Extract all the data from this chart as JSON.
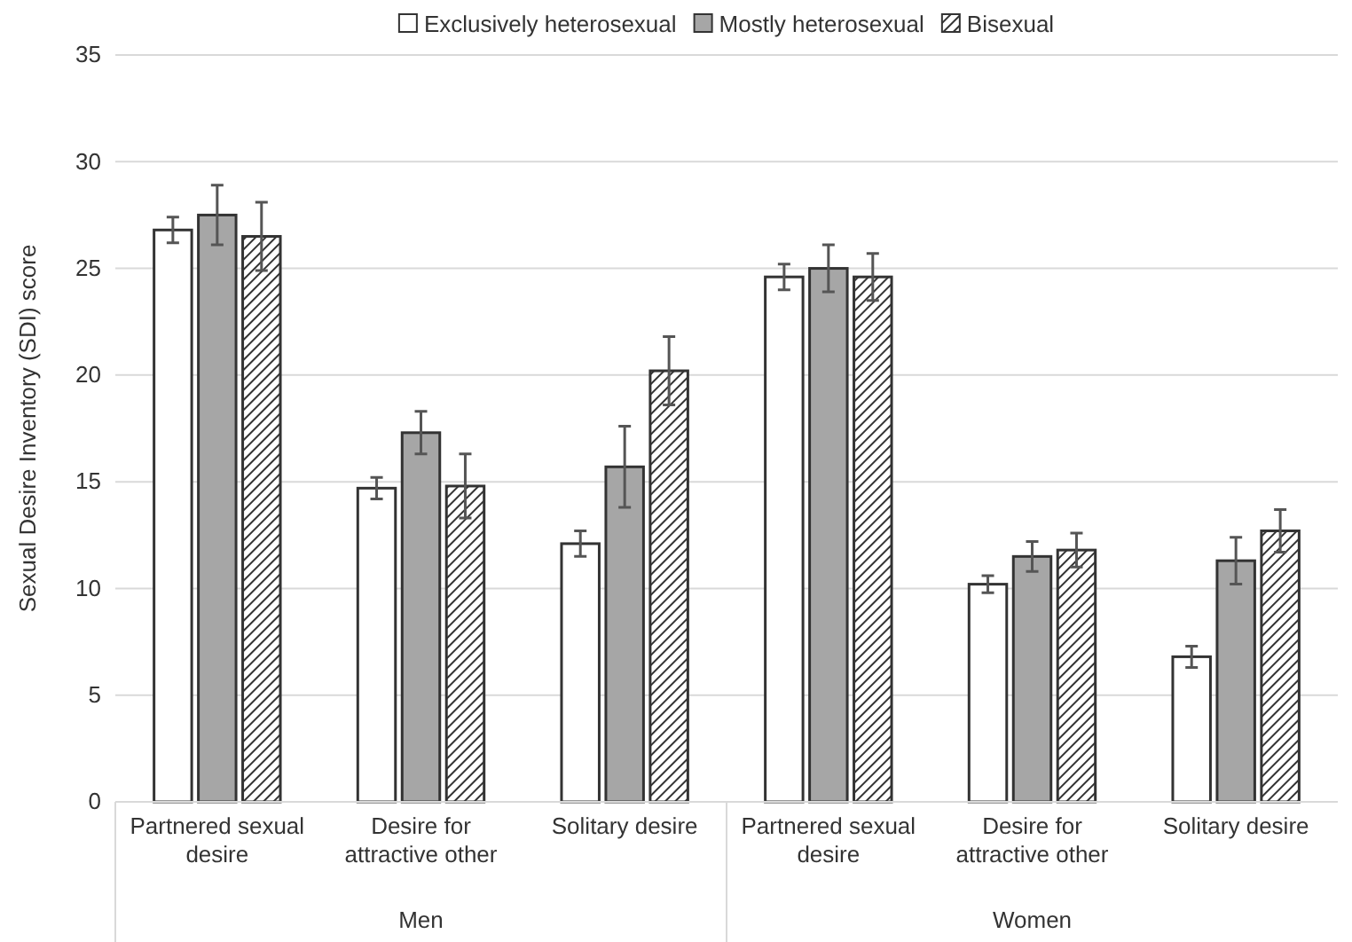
{
  "chart_data": {
    "type": "bar",
    "ylabel": "Sexual Desire Inventory (SDI) score",
    "categories": [
      "Partnered sexual desire",
      "Desire for attractive other",
      "Solitary desire",
      "Partnered sexual desire",
      "Desire for attractive other",
      "Solitary desire"
    ],
    "series": [
      {
        "name": "Exclusively heterosexual",
        "color": "#ffffff",
        "values": [
          26.8,
          14.7,
          12.1,
          24.6,
          10.2,
          6.8
        ],
        "errors": [
          0.6,
          0.5,
          0.6,
          0.6,
          0.4,
          0.5
        ]
      },
      {
        "name": "Mostly heterosexual",
        "color": "#a6a6a6",
        "values": [
          27.5,
          17.3,
          15.7,
          25.0,
          11.5,
          11.3
        ],
        "errors": [
          1.4,
          1.0,
          1.9,
          1.1,
          0.7,
          1.1
        ]
      },
      {
        "name": "Bisexual",
        "color": "#333333",
        "values": [
          26.5,
          14.8,
          20.2,
          24.6,
          11.8,
          12.7
        ],
        "errors": [
          1.6,
          1.5,
          1.6,
          1.1,
          0.8,
          1.0
        ]
      }
    ],
    "ylim": [
      0,
      35
    ],
    "yticks": [
      0,
      5,
      10,
      15,
      20,
      25,
      30,
      35
    ],
    "grid": "y",
    "legend": "top",
    "annotations": [
      "Men",
      "Women"
    ]
  }
}
